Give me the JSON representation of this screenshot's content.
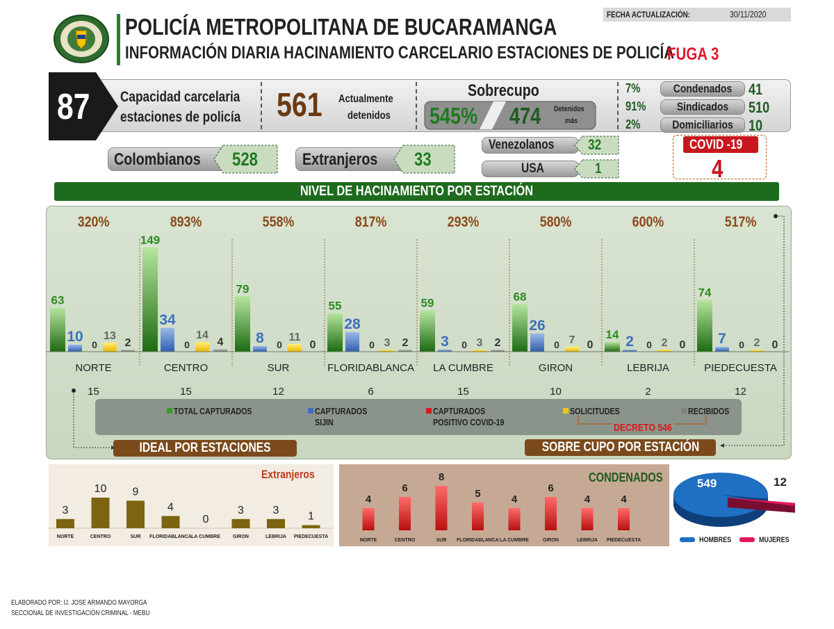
{
  "header": {
    "title": "POLICÍA METROPOLITANA DE BUCARAMANGA",
    "subtitle": "INFORMACIÓN DIARIA HACINAMIENTO CARCELARIO ESTACIONES DE POLICÍA",
    "fuga": "FUGA 3",
    "fecha_label": "FECHA ACTUALIZACIÓN:",
    "fecha_value": "30/11/2020"
  },
  "summary": {
    "capacidad_value": "87",
    "capacidad_label_1": "Capacidad carcelaria",
    "capacidad_label_2": "estaciones de policía",
    "detenidos_value": "561",
    "detenidos_label_1": "Actualmente",
    "detenidos_label_2": "detenidos",
    "sobrecupo_label": "Sobrecupo",
    "sobrecupo_pct": "545%",
    "sobrecupo_value": "474",
    "sobrecupo_note_1": "Detenidos",
    "sobrecupo_note_2": "más",
    "status": [
      {
        "pct": "7%",
        "label": "Condenados",
        "value": "41"
      },
      {
        "pct": "91%",
        "label": "Sindicados",
        "value": "510"
      },
      {
        "pct": "2%",
        "label": "Domiciliarios",
        "value": "10"
      }
    ]
  },
  "nationality": {
    "colombianos_label": "Colombianos",
    "colombianos_value": "528",
    "extranjeros_label": "Extranjeros",
    "extranjeros_value": "33",
    "venezolanos_label": "Venezolanos",
    "venezolanos_value": "32",
    "usa_label": "USA",
    "usa_value": "1"
  },
  "covid": {
    "label": "COVID -19",
    "value": "4"
  },
  "banner": "NIVEL DE HACINAMIENTO POR ESTACIÓN",
  "legend": {
    "total": "TOTAL CAPTURADOS",
    "sijin_1": "CAPTURADOS",
    "sijin_2": "SIJIN",
    "covid_1": "CAPTURADOS",
    "covid_2": "POSITIVO COVID-19",
    "solicitudes": "SOLICITUDES",
    "recibidos": "RECIBIDOS",
    "decreto": "DECRETO 546"
  },
  "labels": {
    "ideal": "IDEAL POR ESTACIONES",
    "sobrecupo_estacion": "SOBRE CUPO POR ESTACIÓN",
    "extranjeros": "Extranjeros",
    "condenados": "CONDENADOS",
    "hombres": "HOMBRES",
    "mujeres": "MUJERES"
  },
  "footer": {
    "line1": "ELABORADO POR: IJ. JOSE ARMANDO MAYORGA",
    "line2": "SECCIONAL DE INVESTIGACIÓN CRIMINAL - MEBU"
  },
  "colors": {
    "green": "#3a9a2a",
    "blue": "#3c6fbe",
    "yellow": "#f5c21b",
    "gray": "#7f7f7f",
    "red": "#d41a1a",
    "brown": "#7a4a1c",
    "olive": "#7d6410"
  },
  "chart_data": [
    {
      "type": "bar",
      "categories": [
        "NORTE",
        "CENTRO",
        "SUR",
        "FLORIDABLANCA",
        "LA CUMBRE",
        "GIRON",
        "LEBRIJA",
        "PIEDECUESTA"
      ],
      "overcrowding_pct": [
        "320%",
        "893%",
        "558%",
        "817%",
        "293%",
        "580%",
        "600%",
        "517%"
      ],
      "ideal": [
        "15",
        "15",
        "12",
        "6",
        "15",
        "10",
        "2",
        "12"
      ],
      "series": [
        {
          "name": "TOTAL CAPTURADOS",
          "values": [
            63,
            149,
            79,
            55,
            59,
            68,
            14,
            74
          ]
        },
        {
          "name": "CAPTURADOS SIJIN",
          "values": [
            10,
            34,
            8,
            28,
            3,
            26,
            2,
            7
          ]
        },
        {
          "name": "CAPTURADOS POSITIVO COVID-19",
          "values": [
            0,
            0,
            0,
            0,
            0,
            0,
            0,
            0
          ]
        },
        {
          "name": "SOLICITUDES",
          "values": [
            13,
            14,
            11,
            3,
            3,
            7,
            2,
            2
          ]
        },
        {
          "name": "RECIBIDOS",
          "values": [
            2,
            4,
            0,
            2,
            2,
            0,
            0,
            0
          ]
        }
      ]
    },
    {
      "type": "bar",
      "title": "Extranjeros",
      "categories": [
        "NORTE",
        "CENTRO",
        "SUR",
        "FLORIDABLANCA",
        "LA CUMBRE",
        "GIRON",
        "LEBRIJA",
        "PIEDECUESTA"
      ],
      "values": [
        3,
        10,
        9,
        4,
        0,
        3,
        3,
        1
      ]
    },
    {
      "type": "bar",
      "title": "CONDENADOS",
      "categories": [
        "NORTE",
        "CENTRO",
        "SUR",
        "FLORIDABLANCA",
        "LA CUMBRE",
        "GIRON",
        "LEBRIJA",
        "PIEDECUESTA"
      ],
      "values": [
        4,
        6,
        8,
        5,
        4,
        6,
        4,
        4
      ]
    },
    {
      "type": "pie",
      "categories": [
        "HOMBRES",
        "MUJERES"
      ],
      "values": [
        549,
        12
      ]
    }
  ]
}
